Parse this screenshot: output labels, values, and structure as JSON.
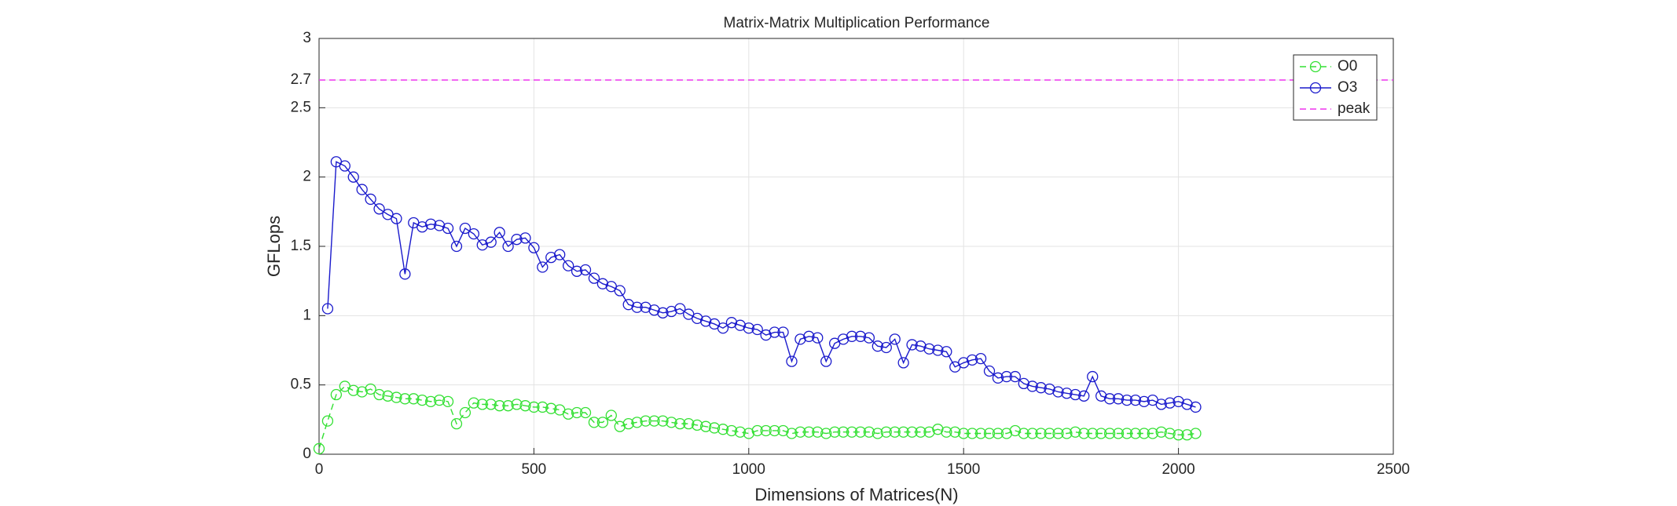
{
  "chart_data": {
    "type": "line",
    "title": "Matrix-Matrix Multiplication Performance",
    "xlabel": "Dimensions of Matrices(N)",
    "ylabel": "GFLops",
    "x": [
      0,
      20,
      40,
      60,
      80,
      100,
      120,
      140,
      160,
      180,
      200,
      220,
      240,
      260,
      280,
      300,
      320,
      340,
      360,
      380,
      400,
      420,
      440,
      460,
      480,
      500,
      520,
      540,
      560,
      580,
      600,
      620,
      640,
      660,
      680,
      700,
      720,
      740,
      760,
      780,
      800,
      820,
      840,
      860,
      880,
      900,
      920,
      940,
      960,
      980,
      1000,
      1020,
      1040,
      1060,
      1080,
      1100,
      1120,
      1140,
      1160,
      1180,
      1200,
      1220,
      1240,
      1260,
      1280,
      1300,
      1320,
      1340,
      1360,
      1380,
      1400,
      1420,
      1440,
      1460,
      1480,
      1500,
      1520,
      1540,
      1560,
      1580,
      1600,
      1620,
      1640,
      1660,
      1680,
      1700,
      1720,
      1740,
      1760,
      1780,
      1800,
      1820,
      1840,
      1860,
      1880,
      1900,
      1920,
      1940,
      1960,
      1980,
      2000,
      2020,
      2040
    ],
    "series": [
      {
        "name": "O0",
        "color": "#33e033",
        "dashed": true,
        "marker": true,
        "values": [
          0.04,
          0.24,
          0.43,
          0.49,
          0.46,
          0.45,
          0.47,
          0.43,
          0.42,
          0.41,
          0.4,
          0.4,
          0.39,
          0.38,
          0.39,
          0.38,
          0.22,
          0.3,
          0.37,
          0.36,
          0.36,
          0.35,
          0.35,
          0.36,
          0.35,
          0.34,
          0.34,
          0.33,
          0.32,
          0.29,
          0.3,
          0.3,
          0.23,
          0.23,
          0.28,
          0.2,
          0.22,
          0.23,
          0.24,
          0.24,
          0.24,
          0.23,
          0.22,
          0.22,
          0.21,
          0.2,
          0.19,
          0.18,
          0.17,
          0.16,
          0.15,
          0.17,
          0.17,
          0.17,
          0.17,
          0.15,
          0.16,
          0.16,
          0.16,
          0.15,
          0.16,
          0.16,
          0.16,
          0.16,
          0.16,
          0.15,
          0.16,
          0.16,
          0.16,
          0.16,
          0.16,
          0.16,
          0.18,
          0.16,
          0.16,
          0.15,
          0.15,
          0.15,
          0.15,
          0.15,
          0.15,
          0.17,
          0.15,
          0.15,
          0.15,
          0.15,
          0.15,
          0.15,
          0.16,
          0.15,
          0.15,
          0.15,
          0.15,
          0.15,
          0.15,
          0.15,
          0.15,
          0.15,
          0.16,
          0.15,
          0.14,
          0.14,
          0.15
        ]
      },
      {
        "name": "O3",
        "color": "#1a1acc",
        "dashed": false,
        "marker": true,
        "values": [
          null,
          1.05,
          2.11,
          2.08,
          2.0,
          1.91,
          1.84,
          1.77,
          1.73,
          1.7,
          1.3,
          1.67,
          1.64,
          1.66,
          1.65,
          1.63,
          1.5,
          1.63,
          1.59,
          1.51,
          1.53,
          1.6,
          1.5,
          1.55,
          1.56,
          1.49,
          1.35,
          1.42,
          1.44,
          1.36,
          1.32,
          1.33,
          1.27,
          1.23,
          1.21,
          1.18,
          1.08,
          1.06,
          1.06,
          1.04,
          1.02,
          1.03,
          1.05,
          1.01,
          0.98,
          0.96,
          0.94,
          0.91,
          0.95,
          0.93,
          0.91,
          0.9,
          0.86,
          0.88,
          0.88,
          0.67,
          0.83,
          0.85,
          0.84,
          0.67,
          0.8,
          0.83,
          0.85,
          0.85,
          0.84,
          0.78,
          0.77,
          0.83,
          0.66,
          0.79,
          0.78,
          0.76,
          0.75,
          0.74,
          0.63,
          0.66,
          0.68,
          0.69,
          0.6,
          0.55,
          0.56,
          0.56,
          0.51,
          0.49,
          0.48,
          0.47,
          0.45,
          0.44,
          0.43,
          0.42,
          0.56,
          0.42,
          0.4,
          0.4,
          0.39,
          0.39,
          0.38,
          0.39,
          0.36,
          0.37,
          0.38,
          0.36,
          0.34
        ]
      },
      {
        "name": "peak",
        "color": "#ee33ee",
        "dashed": true,
        "marker": false,
        "x": [
          0,
          2500
        ],
        "values": [
          2.7,
          2.7
        ]
      }
    ],
    "xlim": [
      0,
      2500
    ],
    "xticks": [
      0,
      500,
      1000,
      1500,
      2000,
      2500
    ],
    "ylim": [
      0,
      3
    ],
    "yticks": [
      0,
      0.5,
      1,
      1.5,
      2,
      2.5,
      2.7,
      3
    ],
    "grid": true,
    "legend": "upper right"
  }
}
